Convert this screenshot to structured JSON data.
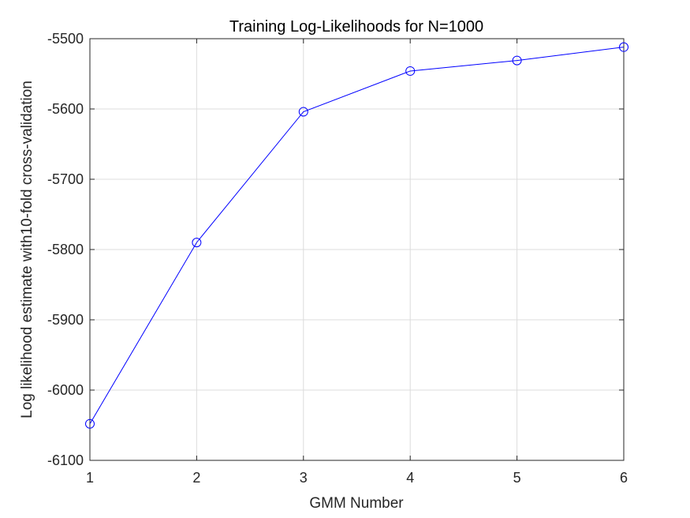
{
  "chart_data": {
    "type": "line",
    "title": "Training Log-Likelihoods for N=1000",
    "xlabel": "GMM Number",
    "ylabel": "Log likelihood estimate with10-fold cross-validation",
    "xlim": [
      1,
      6
    ],
    "ylim": [
      -6100,
      -5500
    ],
    "xticks": [
      1,
      2,
      3,
      4,
      5,
      6
    ],
    "yticks": [
      -6100,
      -6000,
      -5900,
      -5800,
      -5700,
      -5600,
      -5500
    ],
    "xtick_labels": [
      "1",
      "2",
      "3",
      "4",
      "5",
      "6"
    ],
    "ytick_labels": [
      "-6100",
      "-6000",
      "-5900",
      "-5800",
      "-5700",
      "-5600",
      "-5500"
    ],
    "grid": true,
    "marker": "circle",
    "color": "#0000ff",
    "x": [
      1,
      2,
      3,
      4,
      5,
      6
    ],
    "y": [
      -6048,
      -5790,
      -5604,
      -5546,
      -5531,
      -5512
    ]
  }
}
